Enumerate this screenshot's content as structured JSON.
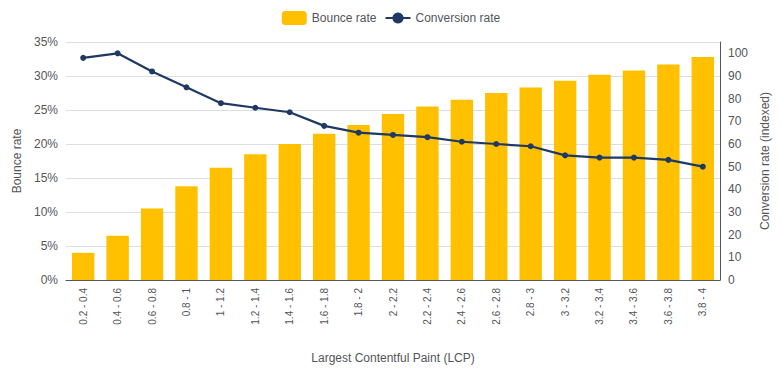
{
  "chart_data": {
    "type": "bar",
    "xlabel": "Largest Contentful Paint (LCP)",
    "ylabel": "Bounce rate",
    "y2label": "Conversion rate (indexed)",
    "categories": [
      "0.2 - 0.4",
      "0.4 - 0.6",
      "0.6 - 0.8",
      "0.8 - 1",
      "1 - 1.2",
      "1.2 - 1.4",
      "1.4 - 1.6",
      "1.6 - 1.8",
      "1.8 - 2",
      "2 - 2.2",
      "2.2 - 2.4",
      "2.4 - 2.6",
      "2.6 - 2.8",
      "2.8 - 3",
      "3 - 3.2",
      "3.2 - 3.4",
      "3.4 - 3.6",
      "3.6 - 3.8",
      "3.8 - 4"
    ],
    "series": [
      {
        "name": "Bounce rate",
        "type": "bar",
        "color": "#FFC000",
        "values": [
          0.04,
          0.065,
          0.105,
          0.138,
          0.165,
          0.185,
          0.2,
          0.215,
          0.228,
          0.244,
          0.255,
          0.265,
          0.275,
          0.283,
          0.293,
          0.302,
          0.308,
          0.317,
          0.328
        ]
      },
      {
        "name": "Conversion rate",
        "type": "line",
        "color": "#1F3864",
        "marker": "circle",
        "axis": "y2",
        "values": [
          98,
          100,
          92,
          85,
          78,
          76,
          74,
          68,
          65,
          64,
          63,
          61,
          60,
          59,
          55,
          54,
          54,
          53,
          50
        ]
      }
    ],
    "ylim": [
      0,
      0.35
    ],
    "yticks": [
      {
        "value": 0.0,
        "label": "0%"
      },
      {
        "value": 0.05,
        "label": "5%"
      },
      {
        "value": 0.1,
        "label": "10%"
      },
      {
        "value": 0.15,
        "label": "15%"
      },
      {
        "value": 0.2,
        "label": "20%"
      },
      {
        "value": 0.25,
        "label": "25%"
      },
      {
        "value": 0.3,
        "label": "30%"
      },
      {
        "value": 0.35,
        "label": "35%"
      }
    ],
    "y2lim": [
      0,
      105
    ],
    "y2ticks": [
      0,
      10,
      20,
      30,
      40,
      50,
      60,
      70,
      80,
      90,
      100
    ],
    "grid": true,
    "legend": "top"
  }
}
